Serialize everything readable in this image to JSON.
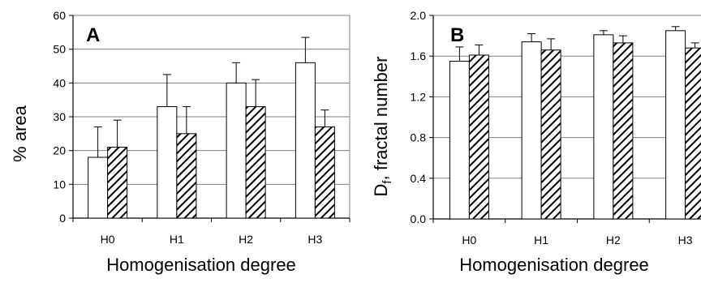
{
  "chart_data": [
    {
      "type": "bar",
      "panel_label": "A",
      "title": "",
      "categories": [
        "H0",
        "H1",
        "H2",
        "H3"
      ],
      "xlabel": "Homogenisation degree",
      "ylabel": "% area",
      "ylim": [
        0,
        60
      ],
      "yticks": [
        "0",
        "10",
        "20",
        "30",
        "40",
        "50",
        "60"
      ],
      "grid": true,
      "legend": "none",
      "series": [
        {
          "pattern": "open",
          "values": [
            18,
            33,
            40,
            46
          ],
          "errors": [
            9,
            9.5,
            6,
            7.5
          ]
        },
        {
          "pattern": "hatched",
          "values": [
            21,
            25,
            33,
            27
          ],
          "errors": [
            8,
            8,
            8,
            5
          ]
        }
      ]
    },
    {
      "type": "bar",
      "panel_label": "B",
      "title": "",
      "categories": [
        "H0",
        "H1",
        "H2",
        "H3"
      ],
      "xlabel": "Homogenisation degree",
      "ylabel": "D",
      "ylabel_sub": "f",
      "ylabel_rest": ", fractal number",
      "ylim": [
        0,
        2.0
      ],
      "yticks": [
        "0.0",
        "0.4",
        "0.8",
        "1.2",
        "1.6",
        "2.0"
      ],
      "grid": true,
      "legend": "none",
      "series": [
        {
          "pattern": "open",
          "values": [
            1.55,
            1.74,
            1.81,
            1.85
          ],
          "errors": [
            0.14,
            0.08,
            0.04,
            0.04
          ]
        },
        {
          "pattern": "hatched",
          "values": [
            1.61,
            1.66,
            1.73,
            1.68
          ],
          "errors": [
            0.1,
            0.11,
            0.07,
            0.05
          ]
        }
      ]
    }
  ],
  "colors": {
    "open_fill": "#ffffff",
    "hatch": "#000000",
    "grid": "#808080",
    "axis": "#000000"
  }
}
